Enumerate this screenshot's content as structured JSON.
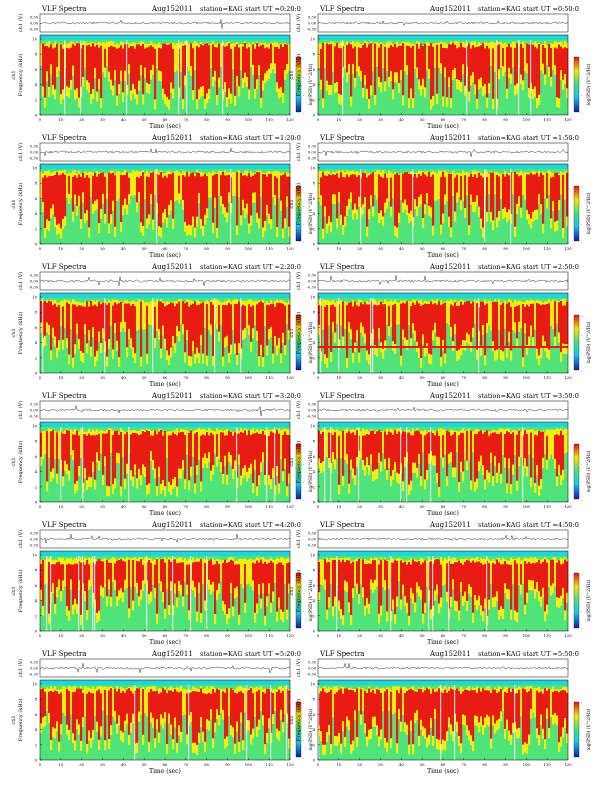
{
  "common": {
    "title": "VLF Spectra",
    "date": "Aug152011",
    "station_label": "station=KAG",
    "start_prefix": "start  UT =",
    "xlabel": "Time  (sec)",
    "ylabel_freq": "Frequency  (kHz)",
    "ylabel_ch1": "ch1",
    "ylabel_amp": "ch1 (V)",
    "colorbar_label": "log(PSD) (V^2/Hz)",
    "amp_ticks": [
      "0.30",
      "0.00",
      "-0.30"
    ],
    "time_ticks": [
      "0",
      "10",
      "20",
      "30",
      "40",
      "50",
      "60",
      "70",
      "80",
      "90",
      "100",
      "110",
      "120"
    ],
    "freq_ticks": [
      "10",
      "8",
      "6",
      "4",
      "2",
      "0"
    ],
    "cbar_ticks": [
      "-",
      "-",
      "-",
      "-"
    ],
    "colors": {
      "spec_red": "#e81c13",
      "spec_yellow": "#f2ee0e",
      "spec_green": "#4fe37a",
      "spec_cyan": "#22d6d6",
      "cbar_top": "#e31414",
      "cbar_bottom": "#0b1e9e"
    }
  },
  "chart_data": [
    {
      "type": "heatmap",
      "start_ut": "0:20:0",
      "x_range": [
        0,
        120
      ],
      "y_range": [
        0,
        10
      ],
      "note": "noisy",
      "wide_line": false
    },
    {
      "type": "heatmap",
      "start_ut": "0:50:0",
      "x_range": [
        0,
        120
      ],
      "y_range": [
        0,
        10
      ],
      "note": "noisy",
      "wide_line": false
    },
    {
      "type": "heatmap",
      "start_ut": "1:20:0",
      "x_range": [
        0,
        120
      ],
      "y_range": [
        0,
        10
      ],
      "note": "noisy",
      "wide_line": false
    },
    {
      "type": "heatmap",
      "start_ut": "1:50:0",
      "x_range": [
        0,
        120
      ],
      "y_range": [
        0,
        10
      ],
      "note": "noisy",
      "wide_line": false
    },
    {
      "type": "heatmap",
      "start_ut": "2:20:0",
      "x_range": [
        0,
        120
      ],
      "y_range": [
        0,
        10
      ],
      "note": "noisy",
      "wide_line": false
    },
    {
      "type": "heatmap",
      "start_ut": "2:50:0",
      "x_range": [
        0,
        120
      ],
      "y_range": [
        0,
        10
      ],
      "note": "noisy",
      "wide_line": true
    },
    {
      "type": "heatmap",
      "start_ut": "3:20:0",
      "x_range": [
        0,
        120
      ],
      "y_range": [
        0,
        10
      ],
      "note": "noisy",
      "wide_line": false
    },
    {
      "type": "heatmap",
      "start_ut": "3:50:0",
      "x_range": [
        0,
        120
      ],
      "y_range": [
        0,
        10
      ],
      "note": "noisy",
      "wide_line": false
    },
    {
      "type": "heatmap",
      "start_ut": "4:20:0",
      "x_range": [
        0,
        120
      ],
      "y_range": [
        0,
        10
      ],
      "note": "noisy",
      "wide_line": false
    },
    {
      "type": "heatmap",
      "start_ut": "4:50:0",
      "x_range": [
        0,
        120
      ],
      "y_range": [
        0,
        10
      ],
      "note": "noisy",
      "wide_line": false
    },
    {
      "type": "heatmap",
      "start_ut": "5:20:0",
      "x_range": [
        0,
        120
      ],
      "y_range": [
        0,
        10
      ],
      "note": "noisy",
      "wide_line": false
    },
    {
      "type": "heatmap",
      "start_ut": "5:50:0",
      "x_range": [
        0,
        120
      ],
      "y_range": [
        0,
        10
      ],
      "note": "noisy",
      "wide_line": false
    }
  ]
}
